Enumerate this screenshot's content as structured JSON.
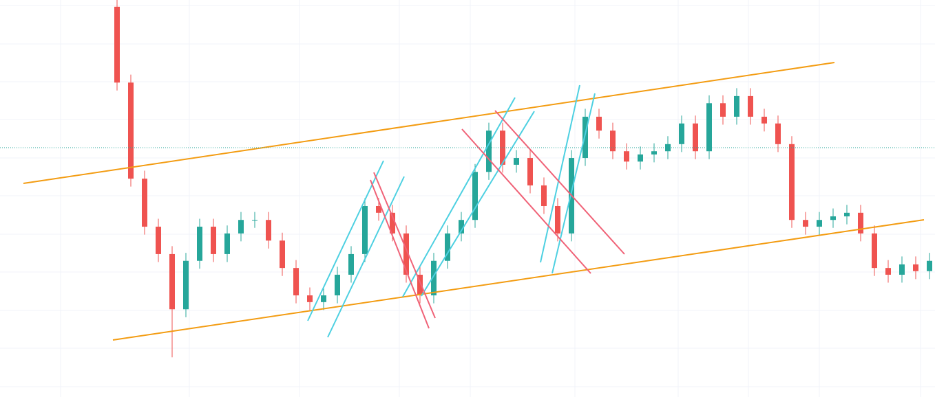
{
  "chart_data": {
    "type": "candlestick",
    "ylim": [
      0,
      100
    ],
    "up_color": "#26a69a",
    "down_color": "#ef5350",
    "price_line": 62.8,
    "price_line_color": "#26a69a",
    "open": [
      98.3,
      79.2,
      55.0,
      42.9,
      36.0,
      22.1,
      34.3,
      42.9,
      36.0,
      41.2,
      44.6,
      44.6,
      39.4,
      32.5,
      25.6,
      23.9,
      25.6,
      30.8,
      36.0,
      48.1,
      46.4,
      41.2,
      30.8,
      25.6,
      34.3,
      41.2,
      44.6,
      56.7,
      67.1,
      58.5,
      60.2,
      53.3,
      48.1,
      41.2,
      60.2,
      70.6,
      67.1,
      61.9,
      59.3,
      61.1,
      61.9,
      63.7,
      68.9,
      61.9,
      74.0,
      70.6,
      75.8,
      70.6,
      68.9,
      63.7,
      44.6,
      42.9,
      44.6,
      45.5,
      46.4,
      41.2,
      32.5,
      30.8,
      33.4,
      31.7
    ],
    "high": [
      100.0,
      81.2,
      57.0,
      44.9,
      38.0,
      36.3,
      44.9,
      44.9,
      43.2,
      46.6,
      46.6,
      46.6,
      41.4,
      34.5,
      27.6,
      27.6,
      32.8,
      38.0,
      50.1,
      50.1,
      48.4,
      43.2,
      32.8,
      36.3,
      43.2,
      46.6,
      58.7,
      69.1,
      69.1,
      62.2,
      62.2,
      55.3,
      50.1,
      62.2,
      72.6,
      72.6,
      69.1,
      63.9,
      63.1,
      63.9,
      65.7,
      70.9,
      70.9,
      76.0,
      76.0,
      77.8,
      77.8,
      72.6,
      70.9,
      65.7,
      46.6,
      46.6,
      47.5,
      48.4,
      48.4,
      43.2,
      34.5,
      35.4,
      35.4,
      36.3
    ],
    "low": [
      77.2,
      53.0,
      40.9,
      34.0,
      10.0,
      20.1,
      32.3,
      34.0,
      34.0,
      39.2,
      42.6,
      37.4,
      30.5,
      23.6,
      21.9,
      21.9,
      23.6,
      28.8,
      34.0,
      44.4,
      39.2,
      28.8,
      23.6,
      23.6,
      32.3,
      39.2,
      42.6,
      54.7,
      56.5,
      56.5,
      51.3,
      46.1,
      39.2,
      39.2,
      58.2,
      65.1,
      59.9,
      57.3,
      57.3,
      59.1,
      59.9,
      61.7,
      59.9,
      59.9,
      68.6,
      68.6,
      68.6,
      66.9,
      61.7,
      42.6,
      40.9,
      40.9,
      42.6,
      43.5,
      39.2,
      30.5,
      28.8,
      28.8,
      29.7,
      29.7
    ],
    "close": [
      79.2,
      55.0,
      42.9,
      36.0,
      22.1,
      34.3,
      42.9,
      36.0,
      41.2,
      44.6,
      44.6,
      39.4,
      32.5,
      25.6,
      23.9,
      25.6,
      30.8,
      36.0,
      48.1,
      46.4,
      41.2,
      30.8,
      25.6,
      34.3,
      41.2,
      44.6,
      56.7,
      67.1,
      58.5,
      60.2,
      53.3,
      48.1,
      41.2,
      60.2,
      70.6,
      67.1,
      61.9,
      59.3,
      61.1,
      61.9,
      63.7,
      68.9,
      61.9,
      74.0,
      70.6,
      75.8,
      70.6,
      68.9,
      63.7,
      44.6,
      42.9,
      44.6,
      45.5,
      46.4,
      41.2,
      32.5,
      30.8,
      33.4,
      31.7,
      34.3
    ]
  }
}
